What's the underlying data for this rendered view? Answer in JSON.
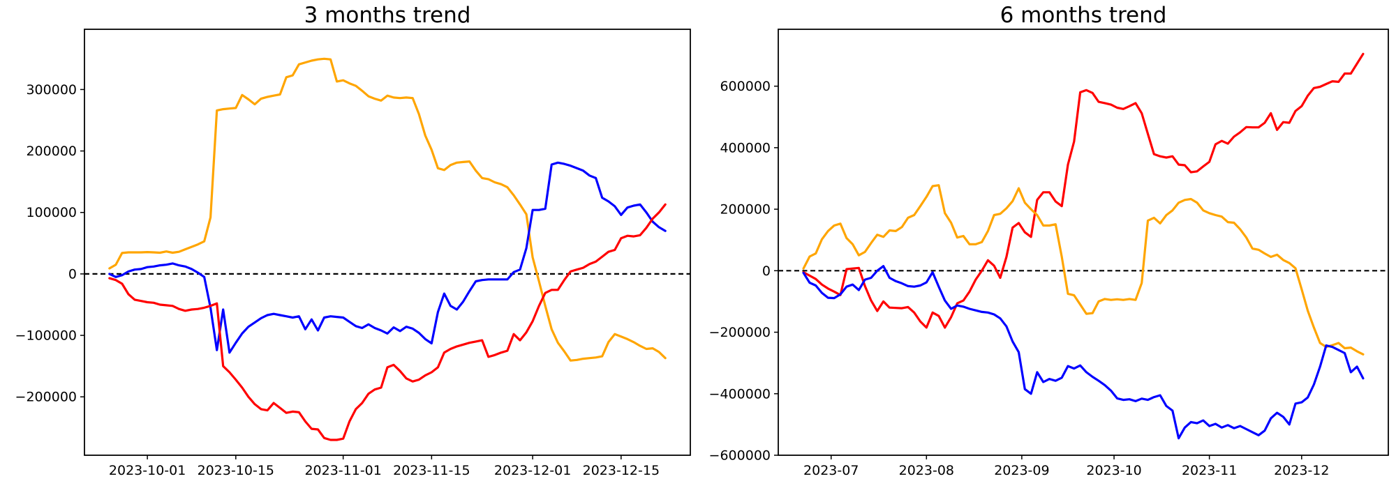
{
  "page": {
    "background": "#ffffff",
    "axes_color": "#000000",
    "zero_line_color": "#000000"
  },
  "chart_data": [
    {
      "type": "line",
      "title": "3 months trend",
      "x_start_date": "2023-09-25",
      "x_step_days": 1,
      "grid": false,
      "legend": null,
      "zero_line": true,
      "ylim": [
        -295000,
        398000
      ],
      "x_margin_frac": 0.045,
      "xticks": [
        {
          "date": "2023-10-01",
          "label": "2023-10-01"
        },
        {
          "date": "2023-10-15",
          "label": "2023-10-15"
        },
        {
          "date": "2023-11-01",
          "label": "2023-11-01"
        },
        {
          "date": "2023-11-15",
          "label": "2023-11-15"
        },
        {
          "date": "2023-12-01",
          "label": "2023-12-01"
        },
        {
          "date": "2023-12-15",
          "label": "2023-12-15"
        }
      ],
      "yticks": [
        {
          "value": 300000,
          "label": "300000"
        },
        {
          "value": 200000,
          "label": "200000"
        },
        {
          "value": 100000,
          "label": "100000"
        },
        {
          "value": 0,
          "label": "0"
        },
        {
          "value": -100000,
          "label": "−100000"
        },
        {
          "value": -200000,
          "label": "−200000"
        }
      ],
      "series": [
        {
          "name": "orange",
          "color": "#FFA500",
          "values": [
            9000,
            15000,
            34000,
            35000,
            35000,
            35000,
            35500,
            35000,
            34500,
            36500,
            34500,
            36000,
            40000,
            44000,
            48000,
            53000,
            92000,
            266000,
            268000,
            269000,
            270000,
            291000,
            284000,
            276000,
            285000,
            288000,
            290000,
            292000,
            320000,
            323000,
            341000,
            344000,
            347000,
            349000,
            350000,
            349000,
            313000,
            315000,
            310000,
            306000,
            298000,
            289000,
            285000,
            282000,
            290000,
            287000,
            286000,
            287000,
            286000,
            260000,
            225000,
            202000,
            172000,
            169000,
            177000,
            181000,
            182000,
            183000,
            168000,
            156000,
            154000,
            149000,
            146000,
            141000,
            128000,
            113000,
            97000,
            27000,
            -12000,
            -52000,
            -90000,
            -112000,
            -126000,
            -141000,
            -140000,
            -138000,
            -137000,
            -136000,
            -134000,
            -111000,
            -98000,
            -102000,
            -106000,
            -111000,
            -117000,
            -122000,
            -121000,
            -127000,
            -137000
          ]
        },
        {
          "name": "blue",
          "color": "#0000FF",
          "values": [
            0,
            -5000,
            -2000,
            4000,
            7000,
            8000,
            11000,
            12000,
            14000,
            15000,
            17000,
            14000,
            12000,
            8000,
            2000,
            -5000,
            -55000,
            -124000,
            -58000,
            -128000,
            -112000,
            -97000,
            -86000,
            -79000,
            -72000,
            -67000,
            -65000,
            -67000,
            -69000,
            -71000,
            -69000,
            -90000,
            -74000,
            -92000,
            -71000,
            -69000,
            -70000,
            -71000,
            -78000,
            -85000,
            -88000,
            -82000,
            -88000,
            -92000,
            -97000,
            -87000,
            -93000,
            -86000,
            -89000,
            -96000,
            -106000,
            -113000,
            -62000,
            -32000,
            -52000,
            -58000,
            -45000,
            -28000,
            -12000,
            -10000,
            -9000,
            -9000,
            -9000,
            -9000,
            3000,
            7000,
            42000,
            104000,
            104000,
            106000,
            178000,
            181000,
            179000,
            176000,
            172000,
            168000,
            160000,
            156000,
            124000,
            118000,
            110000,
            96000,
            108000,
            111000,
            113000,
            100000,
            85000,
            76000,
            70000
          ]
        },
        {
          "name": "red",
          "color": "#FF0000",
          "values": [
            -7000,
            -10000,
            -16000,
            -33000,
            -42000,
            -44000,
            -46000,
            -47000,
            -50000,
            -51000,
            -52000,
            -57000,
            -60000,
            -58000,
            -57000,
            -55000,
            -52000,
            -48000,
            -150000,
            -160000,
            -172000,
            -185000,
            -200000,
            -212000,
            -220000,
            -222000,
            -210000,
            -218000,
            -226000,
            -224000,
            -225000,
            -240000,
            -252000,
            -253000,
            -267000,
            -270000,
            -270000,
            -268000,
            -240000,
            -220000,
            -210000,
            -195000,
            -188000,
            -185000,
            -152000,
            -148000,
            -158000,
            -170000,
            -175000,
            -172000,
            -165000,
            -160000,
            -152000,
            -128000,
            -122000,
            -118000,
            -115000,
            -112000,
            -110000,
            -108000,
            -135000,
            -132000,
            -128000,
            -125000,
            -98000,
            -108000,
            -95000,
            -77000,
            -52000,
            -31000,
            -26000,
            -26000,
            -10000,
            4000,
            7000,
            10000,
            16000,
            20000,
            28000,
            36000,
            39000,
            58000,
            62000,
            61000,
            63000,
            75000,
            90000,
            100000,
            113000
          ]
        }
      ]
    },
    {
      "type": "line",
      "title": "6 months trend",
      "x_start_date": "2023-06-22",
      "x_step_days": 2,
      "grid": false,
      "legend": null,
      "zero_line": true,
      "ylim": [
        -600000,
        785000
      ],
      "x_margin_frac": 0.045,
      "xticks": [
        {
          "date": "2023-07-01",
          "label": "2023-07"
        },
        {
          "date": "2023-08-01",
          "label": "2023-08"
        },
        {
          "date": "2023-09-01",
          "label": "2023-09"
        },
        {
          "date": "2023-10-01",
          "label": "2023-10"
        },
        {
          "date": "2023-11-01",
          "label": "2023-11"
        },
        {
          "date": "2023-12-01",
          "label": "2023-12"
        }
      ],
      "yticks": [
        {
          "value": 600000,
          "label": "600000"
        },
        {
          "value": 400000,
          "label": "400000"
        },
        {
          "value": 200000,
          "label": "200000"
        },
        {
          "value": 0,
          "label": "0"
        },
        {
          "value": -200000,
          "label": "−200000"
        },
        {
          "value": -400000,
          "label": "−400000"
        },
        {
          "value": -600000,
          "label": "−600000"
        }
      ],
      "series": [
        {
          "name": "red",
          "color": "#FF0000",
          "values": [
            -5000,
            -16000,
            -27000,
            -45000,
            -58000,
            -68000,
            -79000,
            5000,
            7000,
            9000,
            -50000,
            -97000,
            -131000,
            -100000,
            -120000,
            -121000,
            -122000,
            -118000,
            -136000,
            -165000,
            -185000,
            -136000,
            -147000,
            -185000,
            -151000,
            -106000,
            -97000,
            -68000,
            -29000,
            0,
            34000,
            16000,
            -23000,
            45000,
            140000,
            155000,
            125000,
            110000,
            230000,
            255000,
            255000,
            225000,
            210000,
            345000,
            420000,
            580000,
            587000,
            578000,
            549000,
            545000,
            540000,
            530000,
            526000,
            535000,
            545000,
            512000,
            445000,
            379000,
            372000,
            368000,
            372000,
            345000,
            343000,
            320000,
            323000,
            339000,
            354000,
            411000,
            422000,
            413000,
            436000,
            450000,
            467000,
            466000,
            466000,
            481000,
            512000,
            458000,
            483000,
            481000,
            519000,
            535000,
            569000,
            594000,
            598000,
            607000,
            616000,
            614000,
            641000,
            641000,
            673000,
            705000
          ]
        },
        {
          "name": "orange",
          "color": "#FFA500",
          "values": [
            7000,
            46000,
            56000,
            102000,
            129000,
            147000,
            153000,
            106000,
            86000,
            50000,
            61000,
            90000,
            117000,
            110000,
            131000,
            129000,
            142000,
            172000,
            181000,
            210000,
            240000,
            275000,
            278000,
            187000,
            156000,
            108000,
            113000,
            86000,
            86000,
            93000,
            129000,
            181000,
            185000,
            203000,
            226000,
            268000,
            221000,
            200000,
            181000,
            147000,
            147000,
            151000,
            45000,
            -75000,
            -80000,
            -110000,
            -140000,
            -138000,
            -100000,
            -92000,
            -95000,
            -93000,
            -95000,
            -92000,
            -95000,
            -40000,
            163000,
            172000,
            154000,
            181000,
            196000,
            221000,
            230000,
            233000,
            221000,
            196000,
            187000,
            181000,
            176000,
            158000,
            156000,
            135000,
            108000,
            72000,
            68000,
            56000,
            45000,
            52000,
            35000,
            25000,
            8000,
            -60000,
            -130000,
            -185000,
            -235000,
            -248000,
            -242000,
            -235000,
            -252000,
            -250000,
            -262000,
            -272000
          ]
        },
        {
          "name": "blue",
          "color": "#0000FF",
          "values": [
            -7000,
            -39000,
            -48000,
            -72000,
            -88000,
            -89000,
            -77000,
            -52000,
            -45000,
            -63000,
            -29000,
            -23000,
            0,
            15000,
            -23000,
            -34000,
            -41000,
            -50000,
            -52000,
            -48000,
            -38000,
            -5000,
            -52000,
            -97000,
            -124000,
            -113000,
            -117000,
            -124000,
            -129000,
            -134000,
            -136000,
            -142000,
            -155000,
            -181000,
            -230000,
            -265000,
            -385000,
            -400000,
            -330000,
            -362000,
            -352000,
            -358000,
            -348000,
            -310000,
            -318000,
            -308000,
            -330000,
            -345000,
            -358000,
            -372000,
            -390000,
            -415000,
            -420000,
            -418000,
            -424000,
            -416000,
            -420000,
            -411000,
            -405000,
            -440000,
            -455000,
            -545000,
            -510000,
            -492000,
            -496000,
            -487000,
            -505000,
            -498000,
            -510000,
            -502000,
            -512000,
            -505000,
            -515000,
            -525000,
            -535000,
            -520000,
            -480000,
            -462000,
            -475000,
            -500000,
            -432000,
            -428000,
            -412000,
            -370000,
            -312000,
            -243000,
            -248000,
            -258000,
            -268000,
            -330000,
            -312000,
            -350000
          ]
        }
      ]
    }
  ]
}
